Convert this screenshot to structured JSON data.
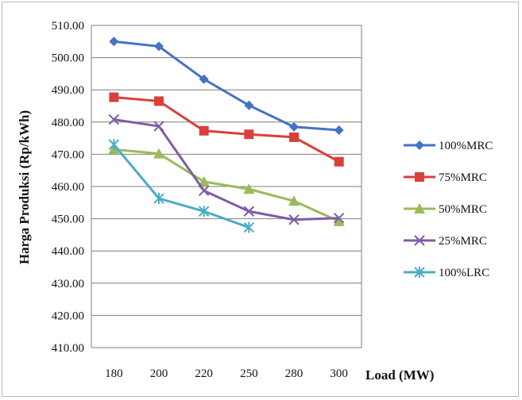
{
  "chart_data": {
    "type": "line",
    "categories": [
      "180",
      "200",
      "220",
      "250",
      "280",
      "300"
    ],
    "series": [
      {
        "name": "100%MRC",
        "color": "#4472c4",
        "marker": "diamond",
        "values": [
          505.0,
          503.5,
          493.3,
          485.2,
          478.5,
          477.5
        ]
      },
      {
        "name": "75%MRC",
        "color": "#d9403b",
        "marker": "square",
        "values": [
          487.7,
          486.5,
          477.3,
          476.2,
          475.3,
          467.7
        ]
      },
      {
        "name": "50%MRC",
        "color": "#9bbb59",
        "marker": "triangle",
        "values": [
          471.5,
          470.2,
          461.5,
          459.2,
          455.5,
          449.2
        ]
      },
      {
        "name": "25%MRC",
        "color": "#7f5ba6",
        "marker": "x",
        "values": [
          480.8,
          478.7,
          458.7,
          452.3,
          449.7,
          450.2
        ]
      },
      {
        "name": "100%LRC",
        "color": "#4bacc6",
        "marker": "star",
        "values": [
          473.0,
          456.3,
          452.3,
          447.3,
          null,
          null
        ]
      }
    ],
    "ylim": [
      410,
      510
    ],
    "yticks": [
      "410.00",
      "420.00",
      "430.00",
      "440.00",
      "450.00",
      "460.00",
      "470.00",
      "480.00",
      "490.00",
      "500.00",
      "510.00"
    ],
    "ylabel": "Harga Produksi (Rp/kWh)",
    "xlabel": "Load (MW)",
    "grid": "horizontal",
    "legend_position": "right"
  }
}
